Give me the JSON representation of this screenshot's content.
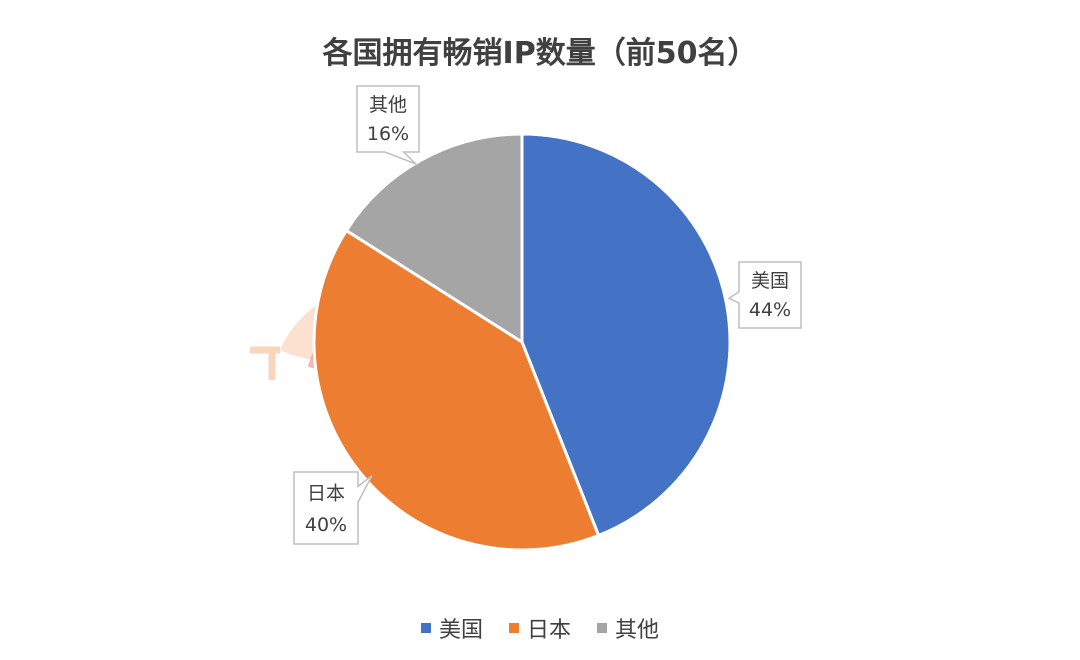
{
  "chart_data": {
    "type": "pie",
    "title": "各国拥有畅销IP数量（前50名）",
    "categories": [
      "美国",
      "日本",
      "其他"
    ],
    "values": [
      44,
      40,
      16
    ],
    "value_labels": [
      "44%",
      "40%",
      "16%"
    ],
    "colors": [
      "#4472c4",
      "#ed7d31",
      "#a5a5a5"
    ],
    "legend_position": "bottom"
  },
  "watermark": {
    "text": "三文娱"
  }
}
